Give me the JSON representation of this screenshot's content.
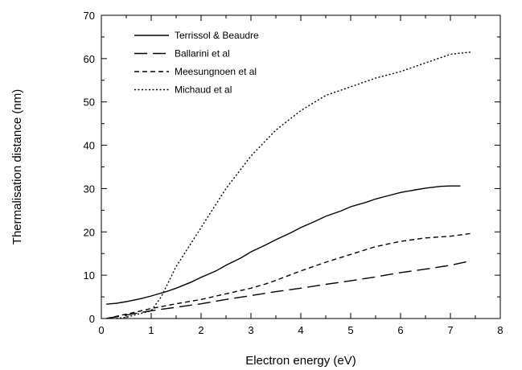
{
  "chart_data": {
    "type": "line",
    "title": "",
    "xlabel": "Electron energy  (eV)",
    "ylabel": "Thermalisation distance  (nm)",
    "xlim": [
      0,
      8
    ],
    "ylim": [
      0,
      70
    ],
    "x_ticks": [
      "0",
      "1",
      "2",
      "3",
      "4",
      "5",
      "6",
      "7",
      "8"
    ],
    "y_ticks": [
      "0",
      "10",
      "20",
      "30",
      "40",
      "50",
      "60",
      "70"
    ],
    "grid": false,
    "legend_position": "top-left",
    "series": [
      {
        "name": "Terrissol & Beaudre",
        "style": "solid",
        "x": [
          0.1,
          0.3,
          0.5,
          0.8,
          1.0,
          1.3,
          1.5,
          1.8,
          2.0,
          2.3,
          2.5,
          2.8,
          3.0,
          3.3,
          3.5,
          3.8,
          4.0,
          4.3,
          4.5,
          4.8,
          5.0,
          5.3,
          5.5,
          5.8,
          6.0,
          6.3,
          6.5,
          6.8,
          7.0,
          7.2
        ],
        "y": [
          3.3,
          3.5,
          3.9,
          4.6,
          5.2,
          6.2,
          7.0,
          8.4,
          9.5,
          11.0,
          12.3,
          14.0,
          15.4,
          17.0,
          18.2,
          19.8,
          21.0,
          22.5,
          23.6,
          24.8,
          25.8,
          26.8,
          27.6,
          28.5,
          29.1,
          29.7,
          30.1,
          30.5,
          30.6,
          30.6
        ]
      },
      {
        "name": "Ballarini et al",
        "style": "long-dash",
        "x": [
          0.1,
          0.5,
          1.0,
          1.5,
          2.0,
          2.5,
          3.0,
          3.5,
          4.0,
          4.5,
          5.0,
          5.5,
          6.0,
          6.5,
          7.0,
          7.4
        ],
        "y": [
          0.0,
          0.8,
          1.8,
          2.6,
          3.4,
          4.4,
          5.3,
          6.2,
          7.0,
          7.9,
          8.7,
          9.6,
          10.6,
          11.4,
          12.3,
          13.3
        ]
      },
      {
        "name": "Meesungnoen et al",
        "style": "short-dash",
        "x": [
          0.1,
          0.5,
          1.0,
          1.5,
          2.0,
          2.5,
          3.0,
          3.3,
          3.5,
          4.0,
          4.5,
          5.0,
          5.5,
          6.0,
          6.5,
          7.0,
          7.4
        ],
        "y": [
          0.0,
          1.0,
          2.3,
          3.4,
          4.4,
          5.7,
          7.0,
          8.0,
          8.8,
          11.0,
          13.0,
          14.8,
          16.6,
          17.8,
          18.6,
          19.0,
          19.6
        ]
      },
      {
        "name": "Michaud et al",
        "style": "dotted",
        "x": [
          0.3,
          0.5,
          1.0,
          1.2,
          1.5,
          2.0,
          2.5,
          3.0,
          3.5,
          4.0,
          4.5,
          5.0,
          5.5,
          6.0,
          6.5,
          7.0,
          7.4
        ],
        "y": [
          0.0,
          0.3,
          1.8,
          5.0,
          12.0,
          21.0,
          30.0,
          37.5,
          43.5,
          48.0,
          51.5,
          53.5,
          55.5,
          57.0,
          59.0,
          61.0,
          61.5
        ]
      }
    ]
  }
}
